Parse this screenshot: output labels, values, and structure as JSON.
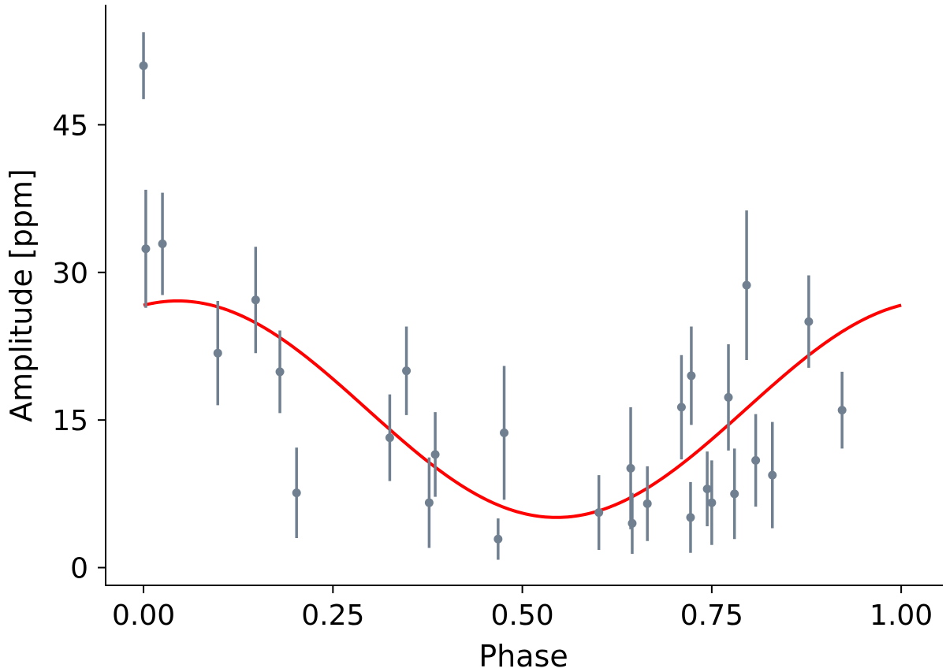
{
  "chart_data": {
    "type": "scatter",
    "xlabel": "Phase",
    "ylabel": "Amplitude [ppm]",
    "xlim": [
      -0.05,
      1.055
    ],
    "ylim": [
      -1.8,
      57.2
    ],
    "xticks": [
      0.0,
      0.25,
      0.5,
      0.75,
      1.0
    ],
    "xtick_labels": [
      "0.00",
      "0.25",
      "0.50",
      "0.75",
      "1.00"
    ],
    "yticks": [
      0,
      15,
      30,
      45
    ],
    "ytick_labels": [
      "0",
      "15",
      "30",
      "45"
    ],
    "grid": false,
    "colors": {
      "points": "#708090",
      "fit": "#ff0000",
      "axes": "#000000"
    },
    "series": [
      {
        "kind": "errorbar",
        "x": [
          0.0,
          0.003,
          0.025,
          0.098,
          0.148,
          0.18,
          0.202,
          0.325,
          0.347,
          0.377,
          0.385,
          0.468,
          0.476,
          0.601,
          0.643,
          0.645,
          0.665,
          0.71,
          0.722,
          0.723,
          0.744,
          0.75,
          0.772,
          0.78,
          0.796,
          0.808,
          0.83,
          0.878,
          0.922
        ],
        "y": [
          51.0,
          32.4,
          32.9,
          21.8,
          27.2,
          19.9,
          7.6,
          13.2,
          20.0,
          6.6,
          11.5,
          2.9,
          13.7,
          5.6,
          10.1,
          4.5,
          6.5,
          16.3,
          5.1,
          19.5,
          8.0,
          6.6,
          17.3,
          7.5,
          28.7,
          10.9,
          9.4,
          25.0,
          16.0
        ],
        "yerr": [
          3.4,
          6.0,
          5.2,
          5.3,
          5.4,
          4.2,
          4.6,
          4.4,
          4.5,
          4.6,
          4.3,
          2.1,
          6.8,
          3.8,
          6.2,
          3.1,
          3.8,
          5.3,
          3.6,
          5.0,
          3.8,
          4.3,
          5.4,
          4.6,
          7.6,
          4.7,
          5.4,
          4.7,
          3.9
        ]
      },
      {
        "kind": "fit",
        "model": "offset + amplitude * cos(2*pi*(phase - peak_phase))",
        "offset": 16.1,
        "amplitude": 11.0,
        "peak_phase": 0.045
      }
    ]
  }
}
